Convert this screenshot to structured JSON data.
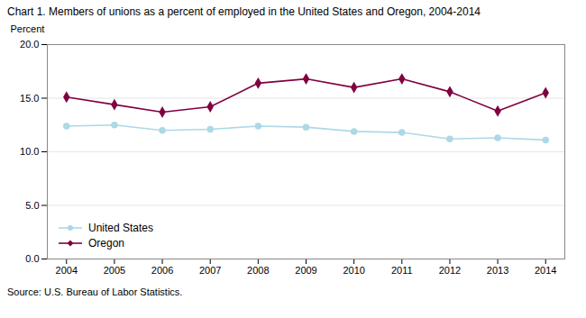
{
  "chart_data": {
    "type": "line",
    "title": "Chart 1. Members of unions as a percent of employed in the United  States and Oregon, 2004-2014",
    "ylabel": "Percent",
    "source": "Source: U.S. Bureau of Labor Statistics.",
    "x": [
      2004,
      2005,
      2006,
      2007,
      2008,
      2009,
      2010,
      2011,
      2012,
      2013,
      2014
    ],
    "series": [
      {
        "name": "United States",
        "color": "#add8e6",
        "marker": "circle",
        "values": [
          12.4,
          12.5,
          12.0,
          12.1,
          12.4,
          12.3,
          11.9,
          11.8,
          11.2,
          11.3,
          11.1
        ]
      },
      {
        "name": "Oregon",
        "color": "#800040",
        "marker": "diamond",
        "values": [
          15.1,
          14.4,
          13.7,
          14.2,
          16.4,
          16.8,
          16.0,
          16.8,
          15.6,
          13.8,
          15.5
        ]
      }
    ],
    "xlim": [
      2003.6,
      2014.4
    ],
    "xticks": [
      2004,
      2005,
      2006,
      2007,
      2008,
      2009,
      2010,
      2011,
      2012,
      2013,
      2014
    ],
    "ylim": [
      0,
      20.0
    ],
    "yticks": [
      {
        "value": 0,
        "label": "0.0"
      },
      {
        "value": 5,
        "label": "5.0"
      },
      {
        "value": 10,
        "label": "10.0"
      },
      {
        "value": 15,
        "label": "15.0"
      },
      {
        "value": 20,
        "label": "20.0"
      }
    ],
    "grid": true,
    "legend": "lower left"
  }
}
